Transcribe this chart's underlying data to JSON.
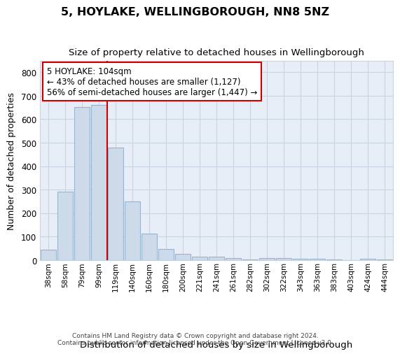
{
  "title": "5, HOYLAKE, WELLINGBOROUGH, NN8 5NZ",
  "subtitle": "Size of property relative to detached houses in Wellingborough",
  "xlabel": "Distribution of detached houses by size in Wellingborough",
  "ylabel": "Number of detached properties",
  "categories": [
    "38sqm",
    "58sqm",
    "79sqm",
    "99sqm",
    "119sqm",
    "140sqm",
    "160sqm",
    "180sqm",
    "200sqm",
    "221sqm",
    "241sqm",
    "261sqm",
    "282sqm",
    "302sqm",
    "322sqm",
    "343sqm",
    "363sqm",
    "383sqm",
    "403sqm",
    "424sqm",
    "444sqm"
  ],
  "values": [
    43,
    292,
    651,
    660,
    478,
    250,
    113,
    48,
    25,
    14,
    13,
    7,
    1,
    8,
    8,
    5,
    6,
    1,
    0,
    5,
    1
  ],
  "bar_color": "#ccdaea",
  "bar_edge_color": "#9ab4cc",
  "grid_color": "#c8d4e4",
  "background_color": "#e8eef8",
  "vline_x_index": 3.5,
  "vline_color": "#cc0000",
  "annotation_text": "5 HOYLAKE: 104sqm\n← 43% of detached houses are smaller (1,127)\n56% of semi-detached houses are larger (1,447) →",
  "annotation_box_color": "white",
  "annotation_box_edge": "#cc0000",
  "ylim": [
    0,
    850
  ],
  "yticks": [
    0,
    100,
    200,
    300,
    400,
    500,
    600,
    700,
    800
  ],
  "footer_line1": "Contains HM Land Registry data © Crown copyright and database right 2024.",
  "footer_line2": "Contains public sector information licensed under the Open Government Licence v3.0."
}
